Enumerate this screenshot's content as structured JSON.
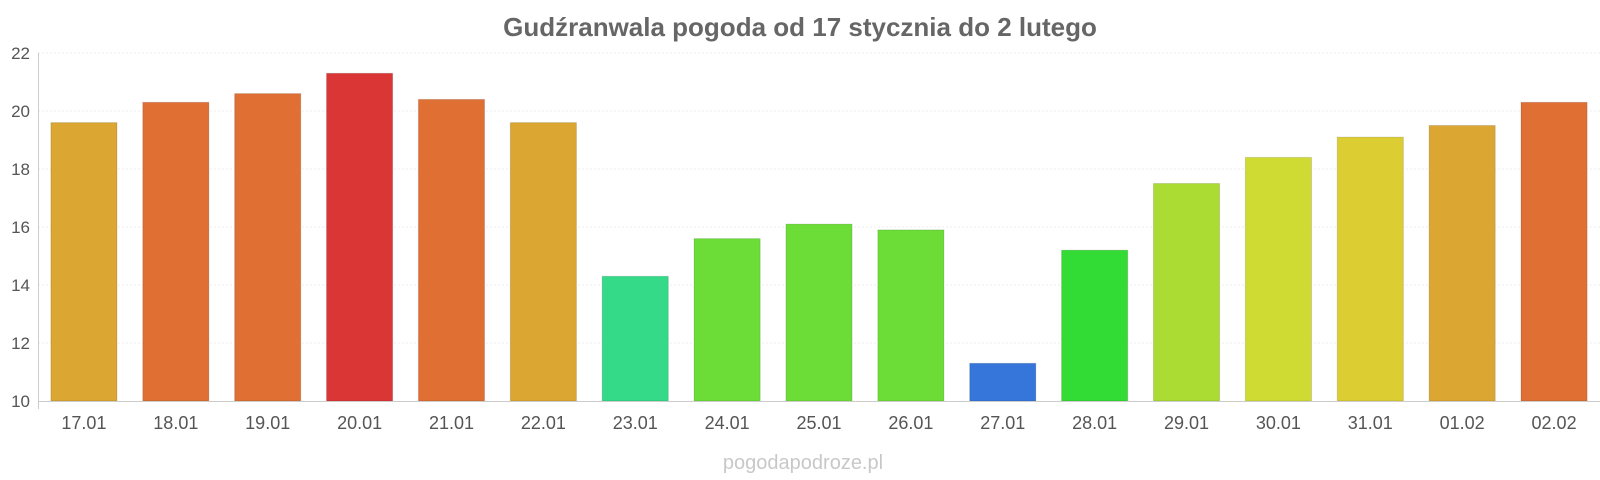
{
  "chart_data": {
    "type": "bar",
    "title": "Gudźranwala pogoda od 17 stycznia do 2 lutego",
    "xlabel": "",
    "ylabel": "",
    "categories": [
      "17.01",
      "18.01",
      "19.01",
      "20.01",
      "21.01",
      "22.01",
      "23.01",
      "24.01",
      "25.01",
      "26.01",
      "27.01",
      "28.01",
      "29.01",
      "30.01",
      "31.01",
      "01.02",
      "02.02"
    ],
    "values": [
      19.6,
      20.3,
      20.6,
      21.3,
      20.4,
      19.6,
      14.3,
      15.6,
      16.1,
      15.9,
      11.3,
      15.2,
      17.5,
      18.4,
      19.1,
      19.5,
      20.3
    ],
    "colors": [
      "#dba631",
      "#df6f33",
      "#df6f33",
      "#da3636",
      "#df6f33",
      "#dba631",
      "#34da88",
      "#6bdd36",
      "#6bdd36",
      "#6bdd36",
      "#3676db",
      "#33dc35",
      "#aadc34",
      "#cfdb33",
      "#dccd33",
      "#dba631",
      "#df6f33"
    ],
    "ylim": [
      10,
      22
    ],
    "yticks": [
      10,
      12,
      14,
      16,
      18,
      20,
      22
    ],
    "grid": true,
    "legend": "none"
  },
  "footer": {
    "watermark": "pogodapodroze.pl"
  }
}
